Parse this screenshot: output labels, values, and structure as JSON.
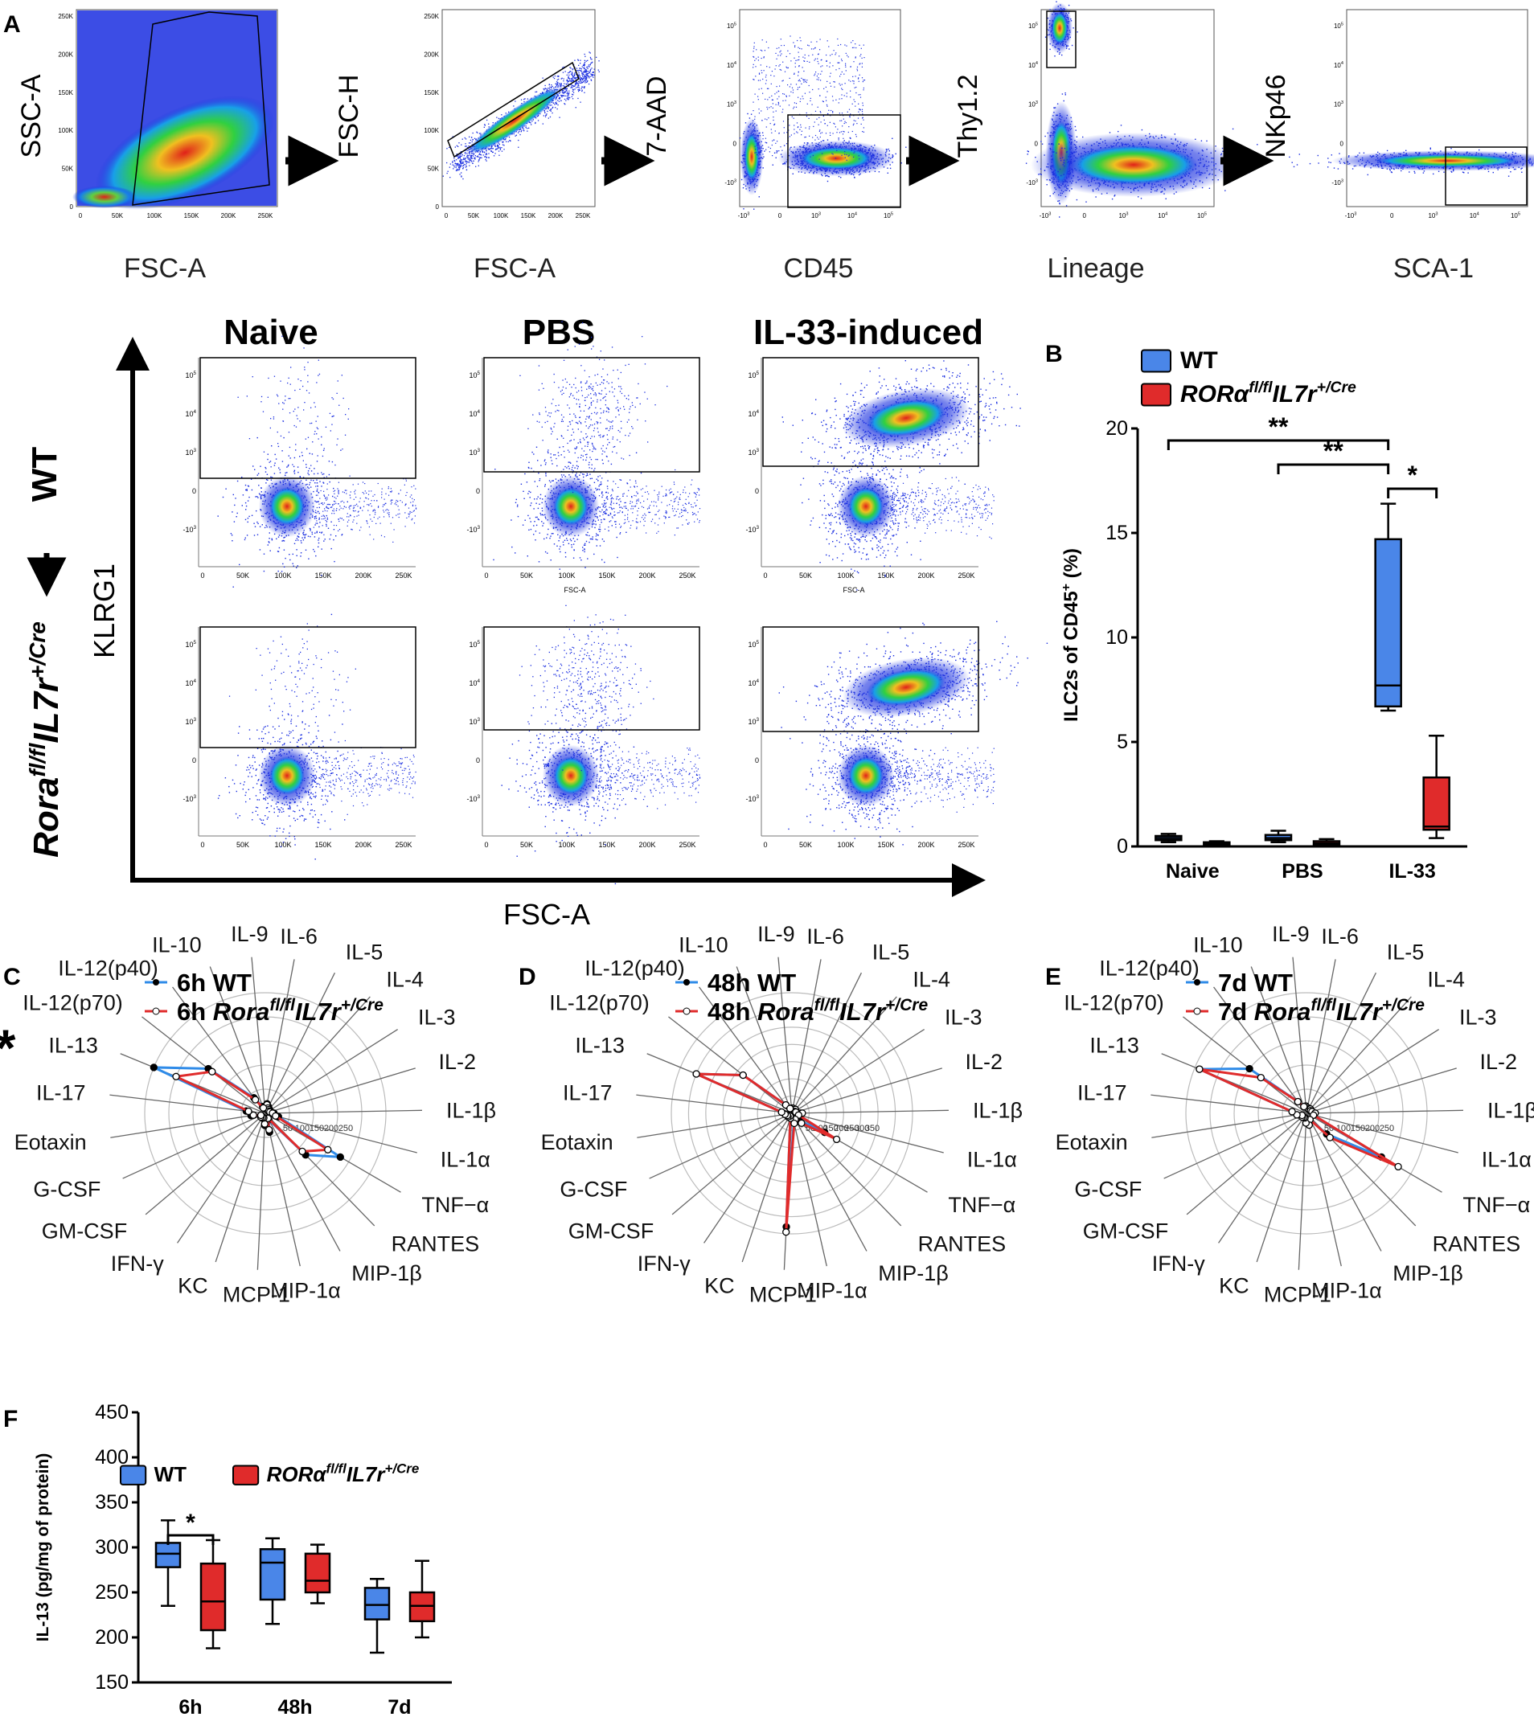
{
  "panel_letters": [
    "A",
    "B",
    "C",
    "D",
    "E",
    "F"
  ],
  "panelA": {
    "plots": [
      {
        "y": "SSC-A",
        "x": "FSC-A",
        "type": "linear",
        "yticks": [
          "0",
          "50K",
          "100K",
          "150K",
          "200K",
          "250K"
        ],
        "xticks": [
          "0",
          "50K",
          "100K",
          "150K",
          "200K",
          "250K"
        ]
      },
      {
        "y": "FSC-H",
        "x": "FSC-A",
        "type": "linear",
        "yticks": [
          "0",
          "50K",
          "100K",
          "150K",
          "200K",
          "250K"
        ],
        "xticks": [
          "0",
          "50K",
          "100K",
          "150K",
          "200K",
          "250K"
        ]
      },
      {
        "y": "7-AAD",
        "x": "CD45",
        "type": "log",
        "yticks": [
          "10^5",
          "10^4",
          "10^3",
          "0",
          "-10^3"
        ],
        "xticks": [
          "-10^3",
          "0",
          "10^3",
          "10^4",
          "10^5"
        ]
      },
      {
        "y": "Thy1.2",
        "x": "Lineage",
        "type": "log",
        "yticks": [
          "10^5",
          "10^4",
          "10^3",
          "0",
          "-10^3"
        ],
        "xticks": [
          "-10^3",
          "0",
          "10^3",
          "10^4",
          "10^5"
        ]
      },
      {
        "y": "NKp46",
        "x": "SCA-1",
        "type": "log",
        "yticks": [
          "10^5",
          "10^4",
          "10^3",
          "0",
          "-10^3"
        ],
        "xticks": [
          "-10^3",
          "0",
          "10^3",
          "10^4",
          "10^5"
        ]
      }
    ],
    "conditions": [
      "Naive",
      "PBS",
      "IL-33-induced"
    ],
    "row_wt": "WT",
    "row_ko_base": "Rora",
    "row_ko_sup1": "fl/fl",
    "row_ko_mid": "IL7r",
    "row_ko_sup2": "+/Cre",
    "axis_y": "KLRG1",
    "axis_x": "FSC-A",
    "small_xlabel": "FSC-A",
    "scatter_xticks": [
      "0",
      "50K",
      "100K",
      "150K",
      "200K",
      "250K"
    ],
    "scatter_yticks": [
      "10^5",
      "10^4",
      "10^3",
      "0",
      "-10^3"
    ]
  },
  "panelB": {
    "chart_data": {
      "type": "box",
      "ylabel_main": "ILC2s of CD45",
      "ylabel_sup": "+",
      "ylabel_tail": " (%)",
      "ylim": [
        0,
        20
      ],
      "yticks": [
        0,
        5,
        10,
        15,
        20
      ],
      "categories": [
        "Naive",
        "PBS",
        "IL-33"
      ],
      "legend": {
        "wt": "WT",
        "ko_base": "RORα",
        "ko_sup1": "fl/fl",
        "ko_mid": "IL7r",
        "ko_sup2": "+/Cre"
      },
      "series": [
        {
          "name": "WT",
          "color": "#4A86E8",
          "boxes": [
            {
              "min": 0.2,
              "q1": 0.3,
              "median": 0.4,
              "q3": 0.5,
              "max": 0.6
            },
            {
              "min": 0.2,
              "q1": 0.3,
              "median": 0.4,
              "q3": 0.55,
              "max": 0.75
            },
            {
              "min": 6.5,
              "q1": 6.7,
              "median": 7.7,
              "q3": 14.7,
              "max": 16.4
            }
          ]
        },
        {
          "name": "RORa fl/fl IL7r +/Cre",
          "color": "#E02B2B",
          "boxes": [
            {
              "min": 0.05,
              "q1": 0.1,
              "median": 0.15,
              "q3": 0.2,
              "max": 0.25
            },
            {
              "min": 0.05,
              "q1": 0.1,
              "median": 0.15,
              "q3": 0.25,
              "max": 0.35
            },
            {
              "min": 0.4,
              "q1": 0.8,
              "median": 0.95,
              "q3": 3.3,
              "max": 5.3
            }
          ]
        }
      ],
      "significance": [
        {
          "label": "**",
          "from": "Naive WT",
          "to": "IL-33 WT"
        },
        {
          "label": "**",
          "from": "PBS WT",
          "to": "IL-33 WT"
        },
        {
          "label": "*",
          "from": "IL-33 WT",
          "to": "IL-33 KO"
        }
      ]
    }
  },
  "radar": {
    "labels": [
      "IL-9",
      "IL-6",
      "IL-5",
      "IL-4",
      "IL-3",
      "IL-2",
      "IL-1β",
      "IL-1α",
      "TNF−α",
      "RANTES",
      "MIP-1β",
      "MIP-1α",
      "MCP-1",
      "KC",
      "IFN-γ",
      "GM-CSF",
      "G-CSF",
      "Eotaxin",
      "IL-17",
      "IL-13",
      "IL-12(p70)",
      "IL-12(p40)",
      "IL-10"
    ],
    "ko_base": "Rora",
    "ko_sup1": "fl/fl",
    "ko_mid": "IL7r",
    "ko_sup2": "+/Cre",
    "panels": [
      {
        "wt_label": "6h WT",
        "ko_prefix": "6h ",
        "max": 250,
        "ticks": [
          "50",
          "100",
          "150",
          "200",
          "250"
        ],
        "star": "*",
        "wt": [
          10,
          20,
          15,
          12,
          10,
          12,
          18,
          28,
          180,
          120,
          15,
          40,
          25,
          12,
          10,
          12,
          10,
          30,
          40,
          250,
          150,
          40,
          15
        ],
        "ko": [
          10,
          18,
          12,
          10,
          8,
          10,
          15,
          22,
          150,
          110,
          12,
          35,
          22,
          10,
          10,
          12,
          10,
          25,
          35,
          200,
          140,
          35,
          12
        ]
      },
      {
        "wt_label": "48h WT",
        "ko_prefix": "48h ",
        "max": 350,
        "ticks": [
          "50",
          "100",
          "150",
          "200",
          "250",
          "300",
          "350"
        ],
        "star": "",
        "wt": [
          15,
          15,
          12,
          15,
          10,
          12,
          25,
          20,
          110,
          30,
          20,
          25,
          330,
          15,
          10,
          15,
          15,
          20,
          30,
          300,
          180,
          30,
          15
        ],
        "ko": [
          15,
          15,
          12,
          15,
          10,
          12,
          30,
          20,
          150,
          40,
          20,
          30,
          345,
          15,
          10,
          15,
          15,
          20,
          30,
          300,
          180,
          30,
          15
        ]
      },
      {
        "wt_label": "7d WT",
        "ko_prefix": "7d ",
        "max": 250,
        "ticks": [
          "50",
          "100",
          "150",
          "200",
          "250"
        ],
        "star": "",
        "wt": [
          15,
          12,
          10,
          12,
          10,
          12,
          18,
          15,
          180,
          60,
          15,
          25,
          20,
          10,
          10,
          12,
          10,
          20,
          30,
          240,
          150,
          30,
          15
        ],
        "ko": [
          15,
          12,
          10,
          12,
          10,
          12,
          18,
          15,
          220,
          70,
          15,
          25,
          20,
          10,
          10,
          12,
          10,
          20,
          30,
          240,
          120,
          30,
          15
        ]
      }
    ]
  },
  "panelF": {
    "chart_data": {
      "type": "box",
      "ylabel": "IL-13 (pg/mg of protein)",
      "ylim": [
        150,
        450
      ],
      "yticks": [
        150,
        200,
        250,
        300,
        350,
        400,
        450
      ],
      "categories": [
        "6h",
        "48h",
        "7d"
      ],
      "legend": {
        "wt": "WT",
        "ko_base": "RORα",
        "ko_sup1": "fl/fl",
        "ko_mid": "IL7r",
        "ko_sup2": "+/Cre"
      },
      "series": [
        {
          "name": "WT",
          "color": "#4A86E8",
          "boxes": [
            {
              "min": 235,
              "q1": 278,
              "median": 293,
              "q3": 305,
              "max": 330
            },
            {
              "min": 215,
              "q1": 242,
              "median": 283,
              "q3": 298,
              "max": 310
            },
            {
              "min": 183,
              "q1": 220,
              "median": 236,
              "q3": 255,
              "max": 265
            }
          ]
        },
        {
          "name": "RORa fl/fl IL7r +/Cre",
          "color": "#E02B2B",
          "boxes": [
            {
              "min": 188,
              "q1": 208,
              "median": 240,
              "q3": 282,
              "max": 308
            },
            {
              "min": 238,
              "q1": 250,
              "median": 263,
              "q3": 293,
              "max": 303
            },
            {
              "min": 200,
              "q1": 218,
              "median": 235,
              "q3": 250,
              "max": 285
            }
          ]
        }
      ],
      "significance": [
        {
          "label": "*",
          "from": "6h WT",
          "to": "6h KO"
        }
      ]
    }
  }
}
